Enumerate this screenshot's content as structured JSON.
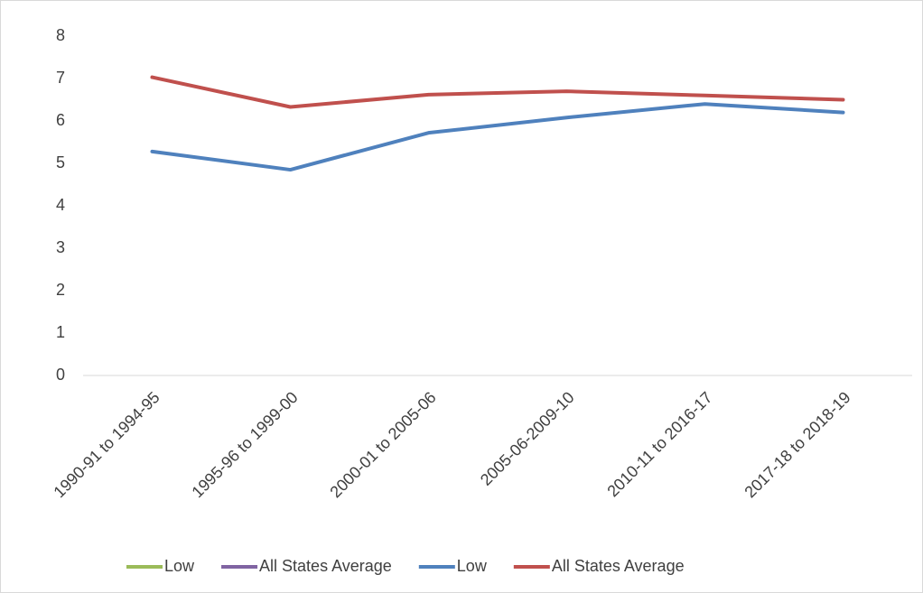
{
  "chart_data": {
    "type": "line",
    "categories": [
      "1990-91 to 1994-95",
      "1995-96 to 1999-00",
      "2000-01 to 2005-06",
      "2005-06-2009-10",
      "2010-11 to 2016-17",
      "2017-18 to 2018-19"
    ],
    "series": [
      {
        "name": "Low",
        "color": "#9bbb59",
        "values": [
          null,
          null,
          null,
          null,
          null,
          null
        ]
      },
      {
        "name": "All States Average",
        "color": "#8064a2",
        "values": [
          null,
          null,
          null,
          null,
          null,
          null
        ]
      },
      {
        "name": "Low",
        "color": "#4f81bd",
        "values": [
          5.28,
          4.85,
          5.72,
          6.08,
          6.4,
          6.2
        ]
      },
      {
        "name": "All States Average",
        "color": "#c0504d",
        "values": [
          7.03,
          6.33,
          6.62,
          6.7,
          6.6,
          6.5
        ]
      }
    ],
    "ylim": [
      0,
      8
    ],
    "yticks": [
      0,
      1,
      2,
      3,
      4,
      5,
      6,
      7,
      8
    ],
    "grid": false,
    "legend": "bottom"
  }
}
